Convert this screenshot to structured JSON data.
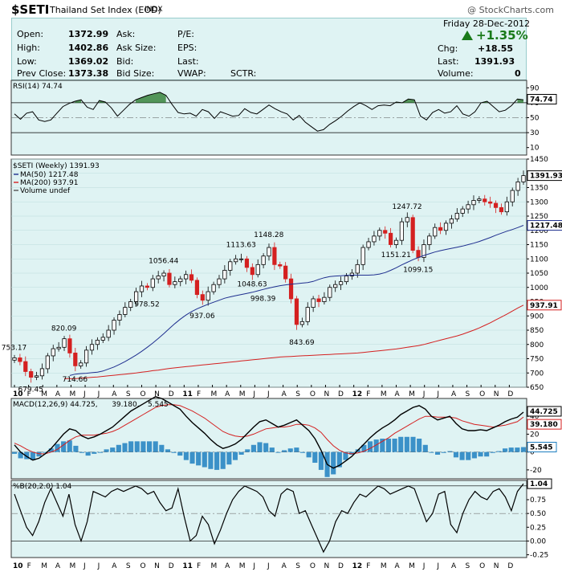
{
  "header": {
    "symbol": "$SETI",
    "name": "Thailand Set Index (EOD)",
    "exchange": "INDX",
    "brand": "@ StockCharts.com"
  },
  "quote": {
    "date": "Friday  28-Dec-2012",
    "change_pct": "+1.35%",
    "labels": {
      "open": "Open:",
      "high": "High:",
      "low": "Low:",
      "prev_close": "Prev Close:",
      "ask": "Ask:",
      "ask_size": "Ask Size:",
      "bid": "Bid:",
      "bid_size": "Bid Size:",
      "pe": "P/E:",
      "eps": "EPS:",
      "last": "Last:",
      "vwap": "VWAP:",
      "sctr": "SCTR:",
      "chg": "Chg:",
      "last2": "Last:",
      "volume": "Volume:"
    },
    "values": {
      "open": "1372.99",
      "high": "1402.86",
      "low": "1369.02",
      "prev_close": "1373.38",
      "chg": "+18.55",
      "last": "1391.93",
      "volume": "0"
    },
    "accent_color": "#1a7a1a"
  },
  "chart_data": [
    {
      "type": "line",
      "panel": "RSI",
      "legend": [
        "RSI(14) 74.74"
      ],
      "current_label": "74.74",
      "y_ticks": [
        "90",
        "70",
        "50",
        "30",
        "10"
      ],
      "y_tick_values": [
        90,
        70,
        50,
        30,
        10
      ],
      "ylim": [
        0,
        100
      ],
      "values": [
        55,
        48,
        56,
        58,
        47,
        45,
        47,
        56,
        65,
        69,
        72,
        74,
        64,
        61,
        73,
        71,
        63,
        52,
        60,
        68,
        74,
        77,
        80,
        82,
        84,
        80,
        68,
        57,
        55,
        56,
        52,
        61,
        58,
        49,
        58,
        55,
        52,
        53,
        62,
        57,
        55,
        61,
        67,
        62,
        58,
        55,
        47,
        53,
        44,
        38,
        32,
        34,
        41,
        46,
        52,
        59,
        65,
        70,
        66,
        61,
        66,
        67,
        66,
        71,
        70,
        75,
        74,
        52,
        47,
        57,
        61,
        56,
        58,
        66,
        55,
        52,
        58,
        70,
        72,
        65,
        58,
        60,
        66,
        75,
        74
      ],
      "colors": {
        "line": "#000000",
        "fill": "#2e7d32"
      }
    },
    {
      "type": "candlestick",
      "panel": "price",
      "title": "$SETI (Weekly) 1391.93",
      "legend": [
        {
          "name": "MA(50) 1217.48",
          "color": "#1f2f8f"
        },
        {
          "name": "MA(200) 937.91",
          "color": "#d42020"
        },
        {
          "name": "Volume undef",
          "color": "#555555"
        }
      ],
      "ylim": [
        650,
        1450
      ],
      "y_ticks": [
        "1450",
        "1400",
        "1350",
        "1300",
        "1250",
        "1200",
        "1150",
        "1100",
        "1050",
        "1000",
        "950",
        "900",
        "850",
        "800",
        "750",
        "700",
        "650"
      ],
      "y_tick_values": [
        1450,
        1400,
        1350,
        1300,
        1250,
        1200,
        1150,
        1100,
        1050,
        1000,
        950,
        900,
        850,
        800,
        750,
        700,
        650
      ],
      "close": [
        753,
        740,
        705,
        685,
        690,
        715,
        760,
        785,
        790,
        820,
        770,
        725,
        735,
        780,
        800,
        815,
        825,
        850,
        885,
        905,
        930,
        950,
        985,
        1005,
        1000,
        1030,
        1040,
        1050,
        1010,
        1020,
        1030,
        1045,
        1025,
        975,
        955,
        985,
        1010,
        1030,
        1060,
        1090,
        1100,
        1100,
        1070,
        1045,
        1080,
        1110,
        1140,
        1080,
        1075,
        1030,
        960,
        870,
        880,
        930,
        960,
        950,
        965,
        1000,
        1010,
        1020,
        1040,
        1050,
        1080,
        1140,
        1160,
        1180,
        1200,
        1190,
        1150,
        1165,
        1230,
        1245,
        1130,
        1105,
        1150,
        1180,
        1210,
        1200,
        1225,
        1240,
        1260,
        1275,
        1290,
        1305,
        1310,
        1300,
        1295,
        1280,
        1265,
        1300,
        1340,
        1370,
        1391.93
      ],
      "ma50": [
        691,
        696,
        698,
        699,
        701,
        703,
        707,
        714,
        721,
        730,
        740,
        751,
        763,
        776,
        790,
        805,
        821,
        838,
        856,
        873,
        889,
        903,
        915,
        925,
        933,
        941,
        948,
        955,
        962,
        967,
        971,
        975,
        979,
        983,
        988,
        993,
        998,
        1002,
        1006,
        1009,
        1011,
        1013,
        1015,
        1017,
        1021,
        1028,
        1034,
        1038,
        1040,
        1041,
        1042,
        1043,
        1043,
        1043,
        1043,
        1044,
        1047,
        1052,
        1060,
        1069,
        1079,
        1088,
        1097,
        1105,
        1112,
        1118,
        1124,
        1129,
        1133,
        1137,
        1141,
        1145,
        1150,
        1155,
        1161,
        1168,
        1175,
        1183,
        1190,
        1197,
        1203,
        1210,
        1217.48
      ],
      "ma200": [
        680,
        680,
        680,
        682,
        683,
        685,
        686,
        688,
        690,
        692,
        694,
        696,
        698,
        700,
        703,
        705,
        708,
        710,
        713,
        716,
        718,
        720,
        722,
        724,
        726,
        728,
        730,
        732,
        734,
        736,
        738,
        740,
        742,
        744,
        746,
        748,
        750,
        752,
        754,
        756,
        757,
        758,
        759,
        760,
        761,
        762,
        763,
        764,
        765,
        766,
        767,
        768,
        769,
        770,
        772,
        774,
        776,
        778,
        780,
        782,
        784,
        787,
        790,
        793,
        796,
        800,
        805,
        810,
        815,
        820,
        825,
        830,
        836,
        843,
        850,
        858,
        867,
        876,
        886,
        896,
        906,
        917,
        928,
        937.91
      ],
      "annotations": [
        {
          "text": "753.17",
          "index": 0,
          "value": 753.17
        },
        {
          "text": "679.45",
          "index": 3,
          "value": 679.45
        },
        {
          "text": "820.09",
          "index": 9,
          "value": 820.09
        },
        {
          "text": "714.66",
          "index": 11,
          "value": 714.66
        },
        {
          "text": "978.52",
          "index": 24,
          "value": 978.52
        },
        {
          "text": "1056.44",
          "index": 27,
          "value": 1056.44
        },
        {
          "text": "937.06",
          "index": 34,
          "value": 937.06
        },
        {
          "text": "1113.63",
          "index": 41,
          "value": 1113.63
        },
        {
          "text": "1048.63",
          "index": 43,
          "value": 1048.63
        },
        {
          "text": "998.39",
          "index": 45,
          "value": 998.39
        },
        {
          "text": "1148.28",
          "index": 46,
          "value": 1148.28
        },
        {
          "text": "843.69",
          "index": 52,
          "value": 843.69
        },
        {
          "text": "1151.21",
          "index": 69,
          "value": 1151.21
        },
        {
          "text": "1247.72",
          "index": 71,
          "value": 1247.72
        },
        {
          "text": "1099.15",
          "index": 73,
          "value": 1099.15
        }
      ],
      "current_labels": [
        {
          "text": "1391.93",
          "value": 1391.93
        },
        {
          "text": "1217.48",
          "value": 1217.48
        },
        {
          "text": "937.91",
          "value": 937.91
        }
      ],
      "x_ticks": [
        "10",
        "F",
        "M",
        "A",
        "M",
        "J",
        "J",
        "A",
        "S",
        "O",
        "N",
        "D",
        "11",
        "F",
        "M",
        "A",
        "M",
        "J",
        "J",
        "A",
        "S",
        "O",
        "N",
        "D",
        "12",
        "F",
        "M",
        "A",
        "M",
        "J",
        "J",
        "A",
        "S",
        "O",
        "N",
        "D"
      ],
      "colors": {
        "up": "#000000",
        "down": "#d42020",
        "ma50": "#1f2f8f",
        "ma200": "#d42020"
      }
    },
    {
      "type": "line",
      "panel": "MACD",
      "legend": [
        {
          "text": "MACD(12,26,9)  44.725,",
          "color": "#000000"
        },
        {
          "text": " 39.180,",
          "color": "#d42020"
        },
        {
          "text": " 5.545",
          "color": "#1e7fc0"
        }
      ],
      "current_labels": [
        "44.725",
        "39.180",
        "5.545"
      ],
      "ylim": [
        -30,
        60
      ],
      "y_ticks": [
        "40",
        "20",
        "0",
        "-20"
      ],
      "y_tick_values": [
        40,
        20,
        0,
        -20
      ],
      "macd": [
        8,
        0,
        -5,
        -9,
        -7,
        -2,
        4,
        12,
        20,
        26,
        24,
        18,
        15,
        17,
        20,
        24,
        28,
        34,
        40,
        46,
        50,
        54,
        58,
        62,
        60,
        56,
        52,
        48,
        40,
        33,
        27,
        21,
        14,
        8,
        4,
        6,
        9,
        14,
        21,
        28,
        34,
        36,
        32,
        28,
        30,
        33,
        36,
        30,
        24,
        15,
        2,
        -14,
        -18,
        -15,
        -10,
        -5,
        2,
        9,
        16,
        22,
        27,
        31,
        36,
        42,
        46,
        50,
        52,
        48,
        40,
        36,
        38,
        40,
        32,
        26,
        24,
        24,
        25,
        24,
        27,
        30,
        34,
        37,
        39,
        44.725
      ],
      "signal": [
        10,
        7,
        3,
        0,
        -2,
        -2,
        0,
        3,
        8,
        13,
        17,
        19,
        19,
        19,
        20,
        21,
        23,
        26,
        30,
        34,
        38,
        42,
        46,
        50,
        52,
        53,
        53,
        52,
        49,
        46,
        42,
        38,
        33,
        28,
        23,
        20,
        18,
        17,
        18,
        20,
        23,
        26,
        27,
        28,
        28,
        29,
        31,
        31,
        30,
        27,
        22,
        14,
        7,
        2,
        -1,
        -2,
        -1,
        1,
        4,
        8,
        12,
        16,
        21,
        25,
        29,
        33,
        37,
        40,
        40,
        39,
        39,
        39,
        38,
        35,
        33,
        31,
        30,
        29,
        28,
        29,
        30,
        32,
        34,
        39.18
      ],
      "histogram": [
        -2,
        -7,
        -8,
        -9,
        -5,
        0,
        4,
        9,
        12,
        13,
        7,
        -1,
        -4,
        -2,
        0,
        3,
        5,
        8,
        10,
        12,
        12,
        12,
        12,
        12,
        8,
        3,
        -1,
        -4,
        -9,
        -13,
        -15,
        -17,
        -19,
        -20,
        -19,
        -14,
        -9,
        -3,
        3,
        8,
        11,
        10,
        5,
        0,
        2,
        4,
        5,
        -1,
        -6,
        -12,
        -20,
        -28,
        -25,
        -17,
        -9,
        -3,
        3,
        8,
        12,
        14,
        15,
        15,
        15,
        17,
        17,
        17,
        15,
        8,
        0,
        -3,
        -1,
        1,
        -6,
        -9,
        -9,
        -7,
        -5,
        -5,
        -1,
        1,
        4,
        5,
        5,
        5.545
      ],
      "colors": {
        "macd": "#000000",
        "signal": "#d42020",
        "histogram": "#1e7fc0"
      }
    },
    {
      "type": "line",
      "panel": "%B",
      "legend": [
        "%B(20,2.0) 1.04"
      ],
      "current_label": "1.04",
      "ylim": [
        -0.3,
        1.1
      ],
      "y_ticks": [
        "1.00",
        "0.75",
        "0.50",
        "0.25",
        "0.00",
        "-0.25"
      ],
      "y_tick_values": [
        1.0,
        0.75,
        0.5,
        0.25,
        0.0,
        -0.25
      ],
      "values": [
        0.85,
        0.55,
        0.25,
        0.1,
        0.35,
        0.7,
        0.95,
        0.7,
        0.45,
        0.85,
        0.3,
        0.0,
        0.35,
        0.9,
        0.85,
        0.8,
        0.9,
        0.95,
        0.9,
        0.95,
        1.0,
        0.95,
        0.85,
        0.9,
        0.7,
        0.55,
        0.6,
        0.95,
        0.45,
        0.0,
        0.1,
        0.45,
        0.3,
        -0.05,
        0.2,
        0.5,
        0.75,
        0.9,
        1.0,
        0.95,
        0.9,
        0.8,
        0.55,
        0.45,
        0.85,
        0.95,
        0.9,
        0.5,
        0.55,
        0.3,
        0.05,
        -0.2,
        0.0,
        0.35,
        0.55,
        0.5,
        0.7,
        0.85,
        0.8,
        0.9,
        1.0,
        0.95,
        0.85,
        0.9,
        0.95,
        1.0,
        0.95,
        0.65,
        0.35,
        0.5,
        0.85,
        0.9,
        0.3,
        0.15,
        0.5,
        0.75,
        0.9,
        0.8,
        0.75,
        0.9,
        0.95,
        0.8,
        0.55,
        0.9,
        1.04
      ],
      "colors": {
        "line": "#000000"
      }
    }
  ]
}
